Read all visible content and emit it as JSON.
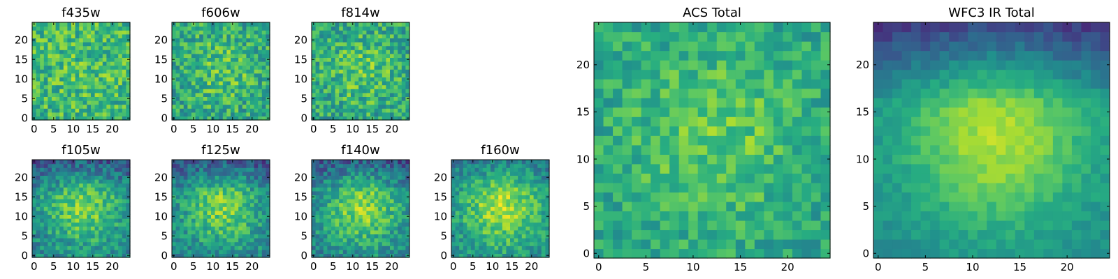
{
  "figure": {
    "grid_size": 25,
    "colormap": "viridis"
  },
  "chart_data": [
    {
      "type": "heatmap",
      "title": "f435w",
      "xticks": [
        "0",
        "5",
        "10",
        "15",
        "20"
      ],
      "yticks": [
        "0",
        "5",
        "10",
        "15",
        "20"
      ],
      "xlim": [
        0,
        25
      ],
      "ylim": [
        0,
        25
      ],
      "mean_level": 0.66,
      "center_boost": 0.05,
      "noise": 0.2,
      "seed": 11
    },
    {
      "type": "heatmap",
      "title": "f606w",
      "xticks": [
        "0",
        "5",
        "10",
        "15",
        "20"
      ],
      "yticks": [
        "0",
        "5",
        "10",
        "15",
        "20"
      ],
      "xlim": [
        0,
        25
      ],
      "ylim": [
        0,
        25
      ],
      "mean_level": 0.58,
      "center_boost": 0.15,
      "noise": 0.2,
      "seed": 23
    },
    {
      "type": "heatmap",
      "title": "f814w",
      "xticks": [
        "0",
        "5",
        "10",
        "15",
        "20"
      ],
      "yticks": [
        "0",
        "5",
        "10",
        "15",
        "20"
      ],
      "xlim": [
        0,
        25
      ],
      "ylim": [
        0,
        25
      ],
      "mean_level": 0.58,
      "center_boost": 0.15,
      "noise": 0.2,
      "seed": 37
    },
    {
      "type": "heatmap",
      "title": "f105w",
      "xticks": [
        "0",
        "5",
        "10",
        "15",
        "20"
      ],
      "yticks": [
        "0",
        "5",
        "10",
        "15",
        "20"
      ],
      "xlim": [
        0,
        25
      ],
      "ylim": [
        0,
        25
      ],
      "mean_level": 0.45,
      "center_boost": 0.35,
      "noise": 0.16,
      "top_dark": 0.25,
      "seed": 41
    },
    {
      "type": "heatmap",
      "title": "f125w",
      "xticks": [
        "0",
        "5",
        "10",
        "15",
        "20"
      ],
      "yticks": [
        "0",
        "5",
        "10",
        "15",
        "20"
      ],
      "xlim": [
        0,
        25
      ],
      "ylim": [
        0,
        25
      ],
      "mean_level": 0.45,
      "center_boost": 0.35,
      "noise": 0.16,
      "top_dark": 0.25,
      "seed": 53
    },
    {
      "type": "heatmap",
      "title": "f140w",
      "xticks": [
        "0",
        "5",
        "10",
        "15",
        "20"
      ],
      "yticks": [
        "0",
        "5",
        "10",
        "15",
        "20"
      ],
      "xlim": [
        0,
        25
      ],
      "ylim": [
        0,
        25
      ],
      "mean_level": 0.45,
      "center_boost": 0.38,
      "noise": 0.16,
      "top_dark": 0.25,
      "seed": 67
    },
    {
      "type": "heatmap",
      "title": "f160w",
      "xticks": [
        "0",
        "5",
        "10",
        "15",
        "20"
      ],
      "yticks": [
        "0",
        "5",
        "10",
        "15",
        "20"
      ],
      "xlim": [
        0,
        25
      ],
      "ylim": [
        0,
        25
      ],
      "mean_level": 0.5,
      "center_boost": 0.38,
      "noise": 0.15,
      "top_dark": 0.15,
      "seed": 79
    },
    {
      "type": "heatmap",
      "title": "ACS Total",
      "xticks": [
        "0",
        "5",
        "10",
        "15",
        "20"
      ],
      "yticks": [
        "0",
        "5",
        "10",
        "15",
        "20"
      ],
      "xlim": [
        0,
        25
      ],
      "ylim": [
        0,
        25
      ],
      "mean_level": 0.58,
      "center_boost": 0.18,
      "noise": 0.14,
      "seed": 83
    },
    {
      "type": "heatmap",
      "title": "WFC3 IR Total",
      "xticks": [
        "0",
        "5",
        "10",
        "15",
        "20"
      ],
      "yticks": [
        "0",
        "5",
        "10",
        "15",
        "20"
      ],
      "xlim": [
        0,
        25
      ],
      "ylim": [
        0,
        25
      ],
      "mean_level": 0.48,
      "center_boost": 0.4,
      "noise": 0.06,
      "top_dark": 0.38,
      "seed": 97
    }
  ]
}
